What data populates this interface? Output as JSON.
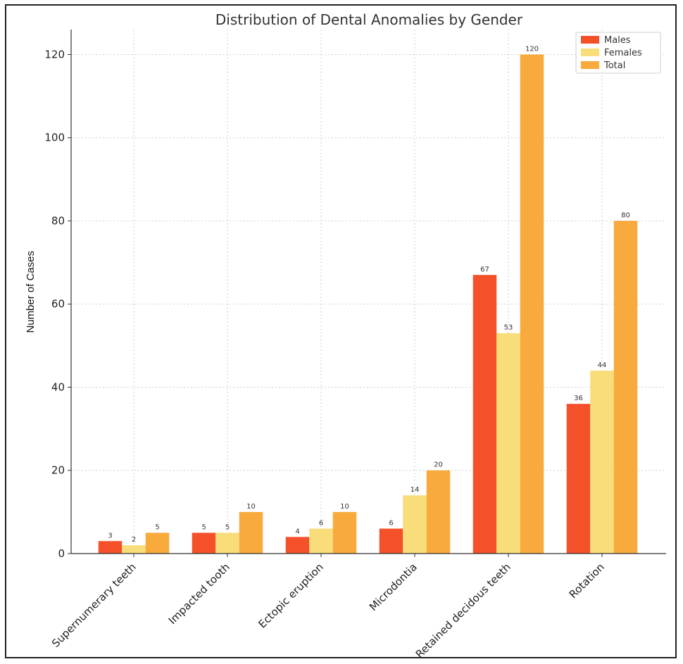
{
  "chart_data": {
    "type": "bar",
    "title": "Distribution of Dental Anomalies by Gender",
    "xlabel": "",
    "ylabel": "Number of Cases",
    "ylim": [
      0,
      126
    ],
    "yticks": [
      0,
      20,
      40,
      60,
      80,
      100,
      120
    ],
    "grid": true,
    "legend_position": "top-right",
    "categories": [
      "Supernumerary teeth",
      "Impacted tooth",
      "Ectopic eruption",
      "Microdontia",
      "Retained decidous teeth",
      "Rotation"
    ],
    "series": [
      {
        "name": "Males",
        "color": "#f4502a",
        "values": [
          3,
          5,
          4,
          6,
          67,
          36
        ]
      },
      {
        "name": "Females",
        "color": "#f8dd7a",
        "values": [
          2,
          5,
          6,
          14,
          53,
          44
        ]
      },
      {
        "name": "Total",
        "color": "#f8aa3c",
        "values": [
          5,
          10,
          10,
          20,
          120,
          80
        ]
      }
    ]
  }
}
